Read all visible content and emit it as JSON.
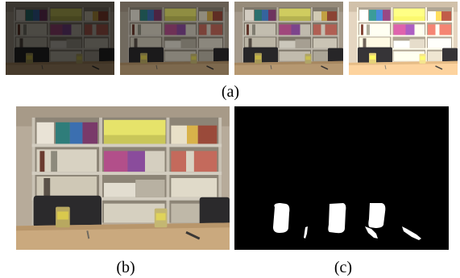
{
  "figure": {
    "labels": {
      "a": "(a)",
      "b": "(b)",
      "c": "(c)"
    },
    "exposures": [
      {
        "id": "exposure-1",
        "brightness": 0.35
      },
      {
        "id": "exposure-2",
        "brightness": 0.62
      },
      {
        "id": "exposure-3",
        "brightness": 0.9
      },
      {
        "id": "exposure-4",
        "brightness": 1.25
      }
    ],
    "colors": {
      "background": "#ffffff",
      "mask_background": "#000000",
      "mask_foreground": "#ffffff"
    }
  }
}
